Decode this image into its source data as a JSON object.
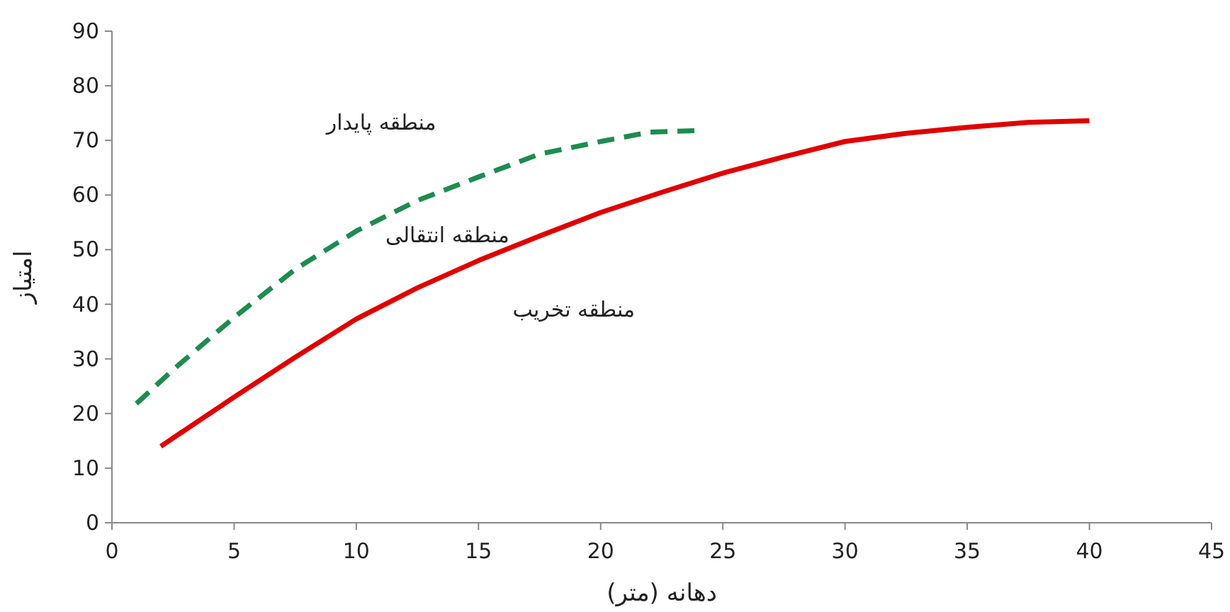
{
  "chart_data": {
    "type": "line",
    "xlabel": "دهانه (متر)",
    "ylabel": "امتیاز",
    "xlim": [
      0,
      45
    ],
    "ylim": [
      0,
      90
    ],
    "xticks": [
      0,
      5,
      10,
      15,
      20,
      25,
      30,
      35,
      40,
      45
    ],
    "yticks": [
      0,
      10,
      20,
      30,
      40,
      50,
      60,
      70,
      80,
      90
    ],
    "grid": false,
    "marker": "none",
    "series": [
      {
        "color": "#1e8c4e",
        "line_style": "dashed",
        "x": [
          1,
          2.5,
          5,
          7.5,
          10,
          12.5,
          15,
          17.5,
          20,
          22,
          24
        ],
        "values": [
          21.8,
          28,
          37.6,
          46.4,
          53.4,
          59,
          63.3,
          67.5,
          69.8,
          71.5,
          71.8
        ]
      },
      {
        "color": "#e00000",
        "line_style": "solid",
        "x": [
          2,
          5,
          7.5,
          10,
          12.5,
          15,
          17.5,
          20,
          22.5,
          25,
          27.5,
          30,
          32.5,
          35,
          37.5,
          40
        ],
        "values": [
          14,
          23,
          30.3,
          37.3,
          43,
          48,
          52.5,
          56.8,
          60.5,
          64,
          67,
          69.8,
          71.3,
          72.4,
          73.3,
          73.6
        ]
      }
    ],
    "annotations": [
      "منطقه پایدار",
      "منطقه انتقالی",
      "منطقه تخریب"
    ]
  }
}
